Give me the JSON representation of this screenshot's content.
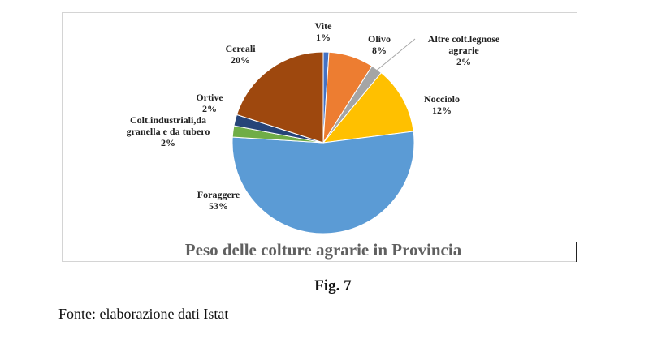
{
  "chart_data": {
    "type": "pie",
    "title": "Peso delle colture agrarie in Provincia",
    "slices": [
      {
        "label_lines": [
          "Vite"
        ],
        "value": 1,
        "value_label": "1%",
        "color": "#4472C4"
      },
      {
        "label_lines": [
          "Olivo"
        ],
        "value": 8,
        "value_label": "8%",
        "color": "#ED7D31"
      },
      {
        "label_lines": [
          "Altre colt.legnose",
          "agrarie"
        ],
        "value": 2,
        "value_label": "2%",
        "color": "#A5A5A5"
      },
      {
        "label_lines": [
          "Nocciolo"
        ],
        "value": 12,
        "value_label": "12%",
        "color": "#FFC000"
      },
      {
        "label_lines": [
          "Foraggere"
        ],
        "value": 53,
        "value_label": "53%",
        "color": "#5B9BD5"
      },
      {
        "label_lines": [
          "Colt.industriali,da",
          "granella e da tubero"
        ],
        "value": 2,
        "value_label": "2%",
        "color": "#70AD47"
      },
      {
        "label_lines": [
          "Ortive"
        ],
        "value": 2,
        "value_label": "2%",
        "color": "#264478"
      },
      {
        "label_lines": [
          "Cereali"
        ],
        "value": 20,
        "value_label": "20%",
        "color": "#9E480E"
      }
    ]
  },
  "caption": "Fig. 7",
  "source": "Fonte: elaborazione dati Istat"
}
